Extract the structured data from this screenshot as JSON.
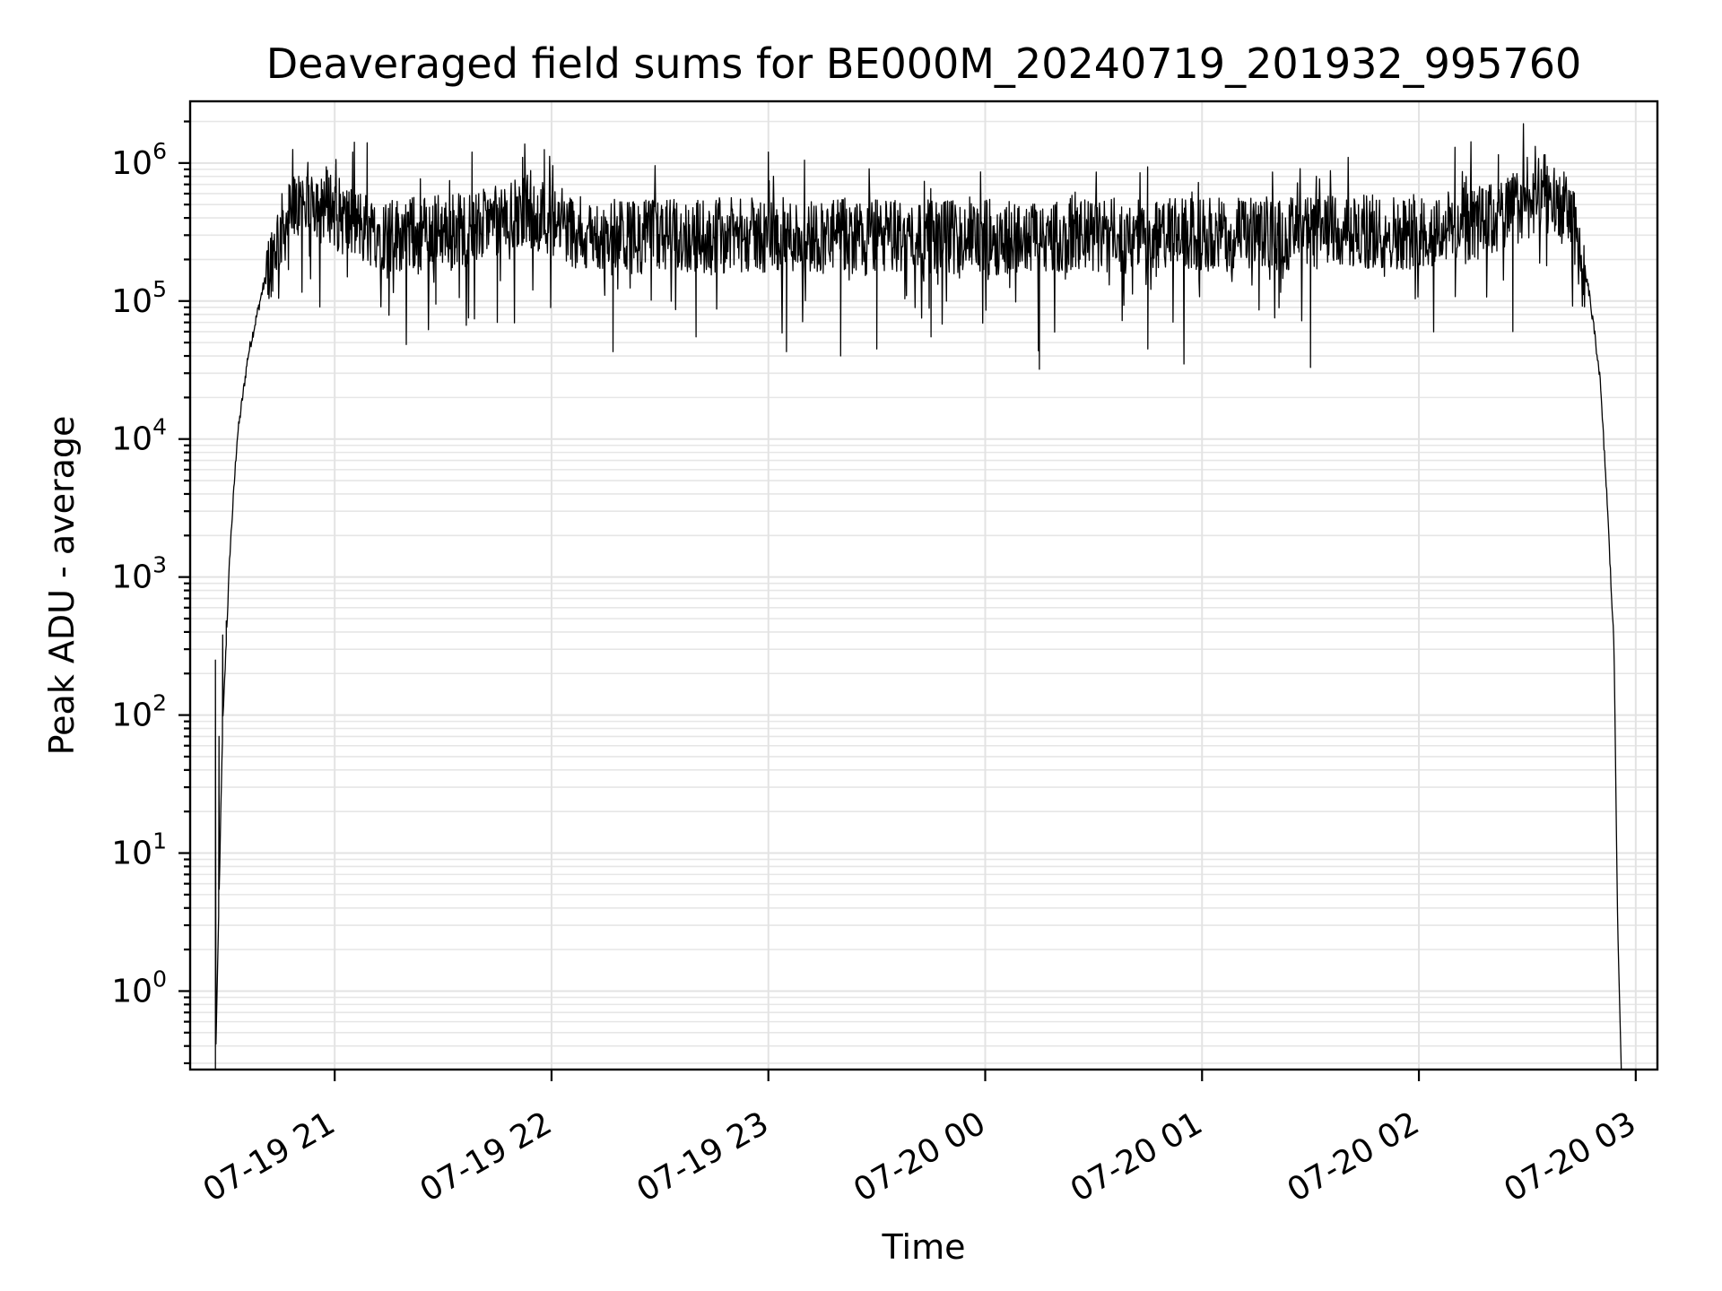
{
  "chart_data": {
    "type": "line",
    "title": "Deaveraged field sums for BE000M_20240719_201932_995760",
    "xlabel": "Time",
    "ylabel": "Peak ADU - average",
    "yscale": "log",
    "grid": true,
    "grid_minor": true,
    "x_range": [
      "2024-07-19 20:20",
      "2024-07-20 03:06"
    ],
    "ylim": [
      0.27,
      2800000
    ],
    "x_ticks": [
      {
        "value": "2024-07-19 21:00",
        "label": "07-19 21"
      },
      {
        "value": "2024-07-19 22:00",
        "label": "07-19 22"
      },
      {
        "value": "2024-07-19 23:00",
        "label": "07-19 23"
      },
      {
        "value": "2024-07-20 00:00",
        "label": "07-20 00"
      },
      {
        "value": "2024-07-20 01:00",
        "label": "07-20 01"
      },
      {
        "value": "2024-07-20 02:00",
        "label": "07-20 02"
      },
      {
        "value": "2024-07-20 03:00",
        "label": "07-20 03"
      }
    ],
    "y_ticks": [
      {
        "value": 1,
        "base": "10",
        "exp": "0"
      },
      {
        "value": 10,
        "base": "10",
        "exp": "1"
      },
      {
        "value": 100,
        "base": "10",
        "exp": "2"
      },
      {
        "value": 1000,
        "base": "10",
        "exp": "3"
      },
      {
        "value": 10000,
        "base": "10",
        "exp": "4"
      },
      {
        "value": 100000,
        "base": "10",
        "exp": "5"
      },
      {
        "value": 1000000,
        "base": "10",
        "exp": "6"
      }
    ],
    "series": [
      {
        "color": "#000000",
        "trend": [
          [
            "2024-07-19 20:27",
            0.27
          ],
          [
            "2024-07-19 20:29",
            80
          ],
          [
            "2024-07-19 20:31",
            1500
          ],
          [
            "2024-07-19 20:33",
            10000
          ],
          [
            "2024-07-19 20:36",
            40000
          ],
          [
            "2024-07-19 20:40",
            120000
          ],
          [
            "2024-07-19 20:44",
            280000
          ],
          [
            "2024-07-19 20:48",
            430000
          ],
          [
            "2024-07-19 20:53",
            560000
          ],
          [
            "2024-07-19 20:58",
            520000
          ],
          [
            "2024-07-19 21:03",
            380000
          ],
          [
            "2024-07-19 21:15",
            300000
          ],
          [
            "2024-07-19 21:40",
            340000
          ],
          [
            "2024-07-19 21:55",
            450000
          ],
          [
            "2024-07-19 22:10",
            290000
          ],
          [
            "2024-07-19 23:00",
            300000
          ],
          [
            "2024-07-20 00:00",
            290000
          ],
          [
            "2024-07-20 01:00",
            300000
          ],
          [
            "2024-07-20 02:00",
            320000
          ],
          [
            "2024-07-20 02:20",
            380000
          ],
          [
            "2024-07-20 02:35",
            620000
          ],
          [
            "2024-07-20 02:42",
            420000
          ],
          [
            "2024-07-20 02:47",
            120000
          ],
          [
            "2024-07-20 02:50",
            30000
          ],
          [
            "2024-07-20 02:52",
            4000
          ],
          [
            "2024-07-20 02:54",
            300
          ],
          [
            "2024-07-20 02:55",
            3
          ],
          [
            "2024-07-20 02:56",
            0.27
          ]
        ],
        "spikes": [
          [
            "2024-07-19 20:27",
            250
          ],
          [
            "2024-07-19 20:28",
            70
          ],
          [
            "2024-07-19 20:29",
            380
          ],
          [
            "2024-07-19 20:30",
            480
          ],
          [
            "2024-07-19 21:05",
            1200000
          ],
          [
            "2024-07-19 21:09",
            1400000
          ],
          [
            "2024-07-19 21:28",
            95000
          ],
          [
            "2024-07-19 21:38",
            1200000
          ],
          [
            "2024-07-19 21:45",
            70000
          ],
          [
            "2024-07-19 21:52",
            1100000
          ],
          [
            "2024-07-19 21:58",
            1250000
          ],
          [
            "2024-07-19 22:17",
            43000
          ],
          [
            "2024-07-19 22:40",
            55000
          ],
          [
            "2024-07-19 23:00",
            1200000
          ],
          [
            "2024-07-19 23:05",
            43000
          ],
          [
            "2024-07-19 23:10",
            1050000
          ],
          [
            "2024-07-19 23:20",
            40000
          ],
          [
            "2024-07-19 23:30",
            45000
          ],
          [
            "2024-07-19 23:45",
            55000
          ],
          [
            "2024-07-20 00:15",
            32000
          ],
          [
            "2024-07-20 00:45",
            45000
          ],
          [
            "2024-07-20 00:55",
            35000
          ],
          [
            "2024-07-20 01:30",
            33000
          ],
          [
            "2024-07-20 02:10",
            1300000
          ],
          [
            "2024-07-20 02:22",
            1150000
          ],
          [
            "2024-07-20 02:26",
            60000
          ],
          [
            "2024-07-20 02:30",
            1100000
          ]
        ]
      }
    ]
  }
}
